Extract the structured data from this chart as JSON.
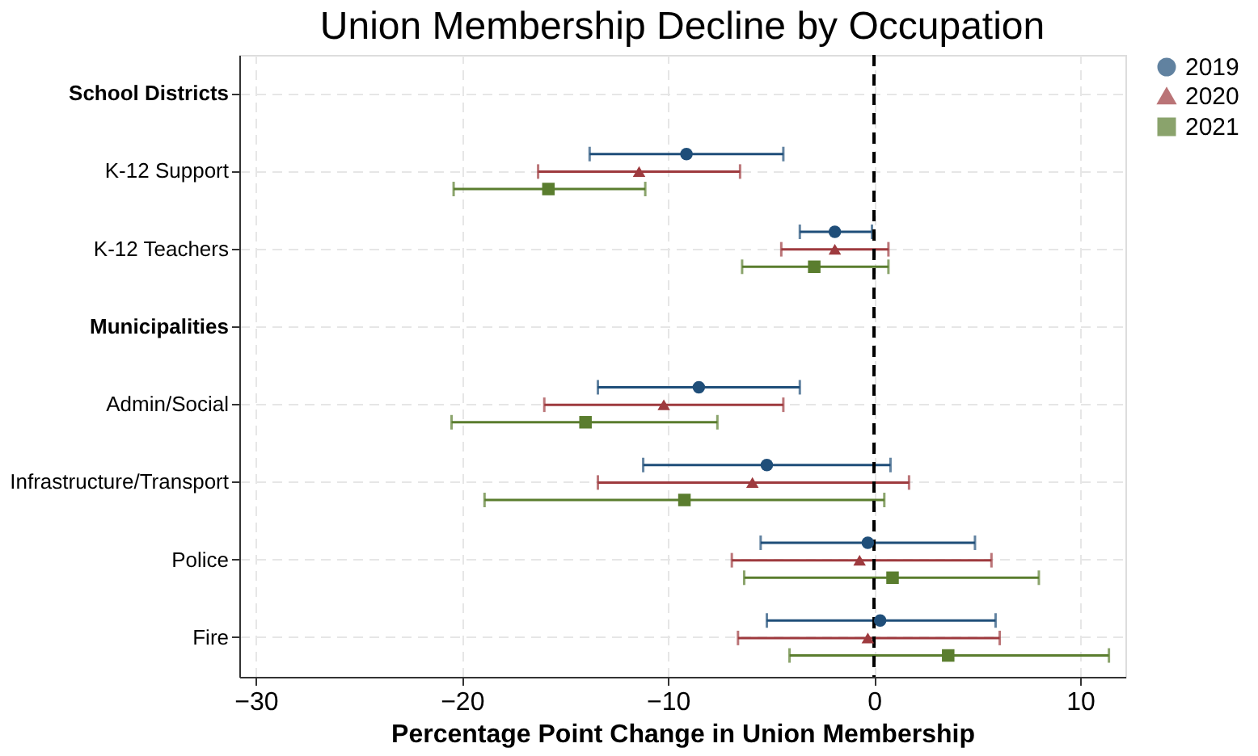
{
  "chart_data": {
    "type": "scatter",
    "title": "Union Membership Decline by Occupation",
    "xlabel": "Percentage Point Change in Union Membership",
    "orientation": "horizontal",
    "categories": [
      "School Districts",
      "K-12 Support",
      "K-12 Teachers",
      "Municipalities",
      "Admin/Social",
      "Infrastructure/Transport",
      "Police",
      "Fire"
    ],
    "series": [
      {
        "name": "2019",
        "color": "#1f4e79",
        "marker": "circle",
        "values": [
          null,
          -9.1,
          -1.9,
          null,
          -8.5,
          -5.2,
          -0.3,
          0.3
        ],
        "errors": [
          null,
          [
            -13.8,
            -4.4
          ],
          [
            -3.6,
            -0.1
          ],
          null,
          [
            -13.4,
            -3.6
          ],
          [
            -11.2,
            0.8
          ],
          [
            -5.5,
            4.9
          ],
          [
            -5.2,
            5.9
          ]
        ]
      },
      {
        "name": "2020",
        "color": "#9e3a3e",
        "marker": "triangle",
        "values": [
          null,
          -11.4,
          -1.9,
          null,
          -10.2,
          -5.9,
          -0.7,
          -0.3
        ],
        "errors": [
          null,
          [
            -16.3,
            -6.5
          ],
          [
            -4.5,
            0.7
          ],
          null,
          [
            -16.0,
            -4.4
          ],
          [
            -13.4,
            1.7
          ],
          [
            -6.9,
            5.7
          ],
          [
            -6.6,
            6.1
          ]
        ]
      },
      {
        "name": "2021",
        "color": "#5a7d2e",
        "marker": "square",
        "values": [
          null,
          -15.8,
          -2.9,
          null,
          -14.0,
          -9.2,
          0.9,
          3.6
        ],
        "errors": [
          null,
          [
            -20.4,
            -11.1
          ],
          [
            -6.4,
            0.7
          ],
          null,
          [
            -20.5,
            -7.6
          ],
          [
            -18.9,
            0.5
          ],
          [
            -6.3,
            8.0
          ],
          [
            -4.1,
            11.4
          ]
        ]
      }
    ],
    "xlim": [
      -30.8,
      12.2
    ],
    "xticks": [
      -30,
      -20,
      -10,
      0,
      10
    ],
    "ref_lines": [
      {
        "axis": "x",
        "value": 0,
        "color": "#000000",
        "line_style": "dashed"
      }
    ],
    "grid": true,
    "legend": "right"
  }
}
